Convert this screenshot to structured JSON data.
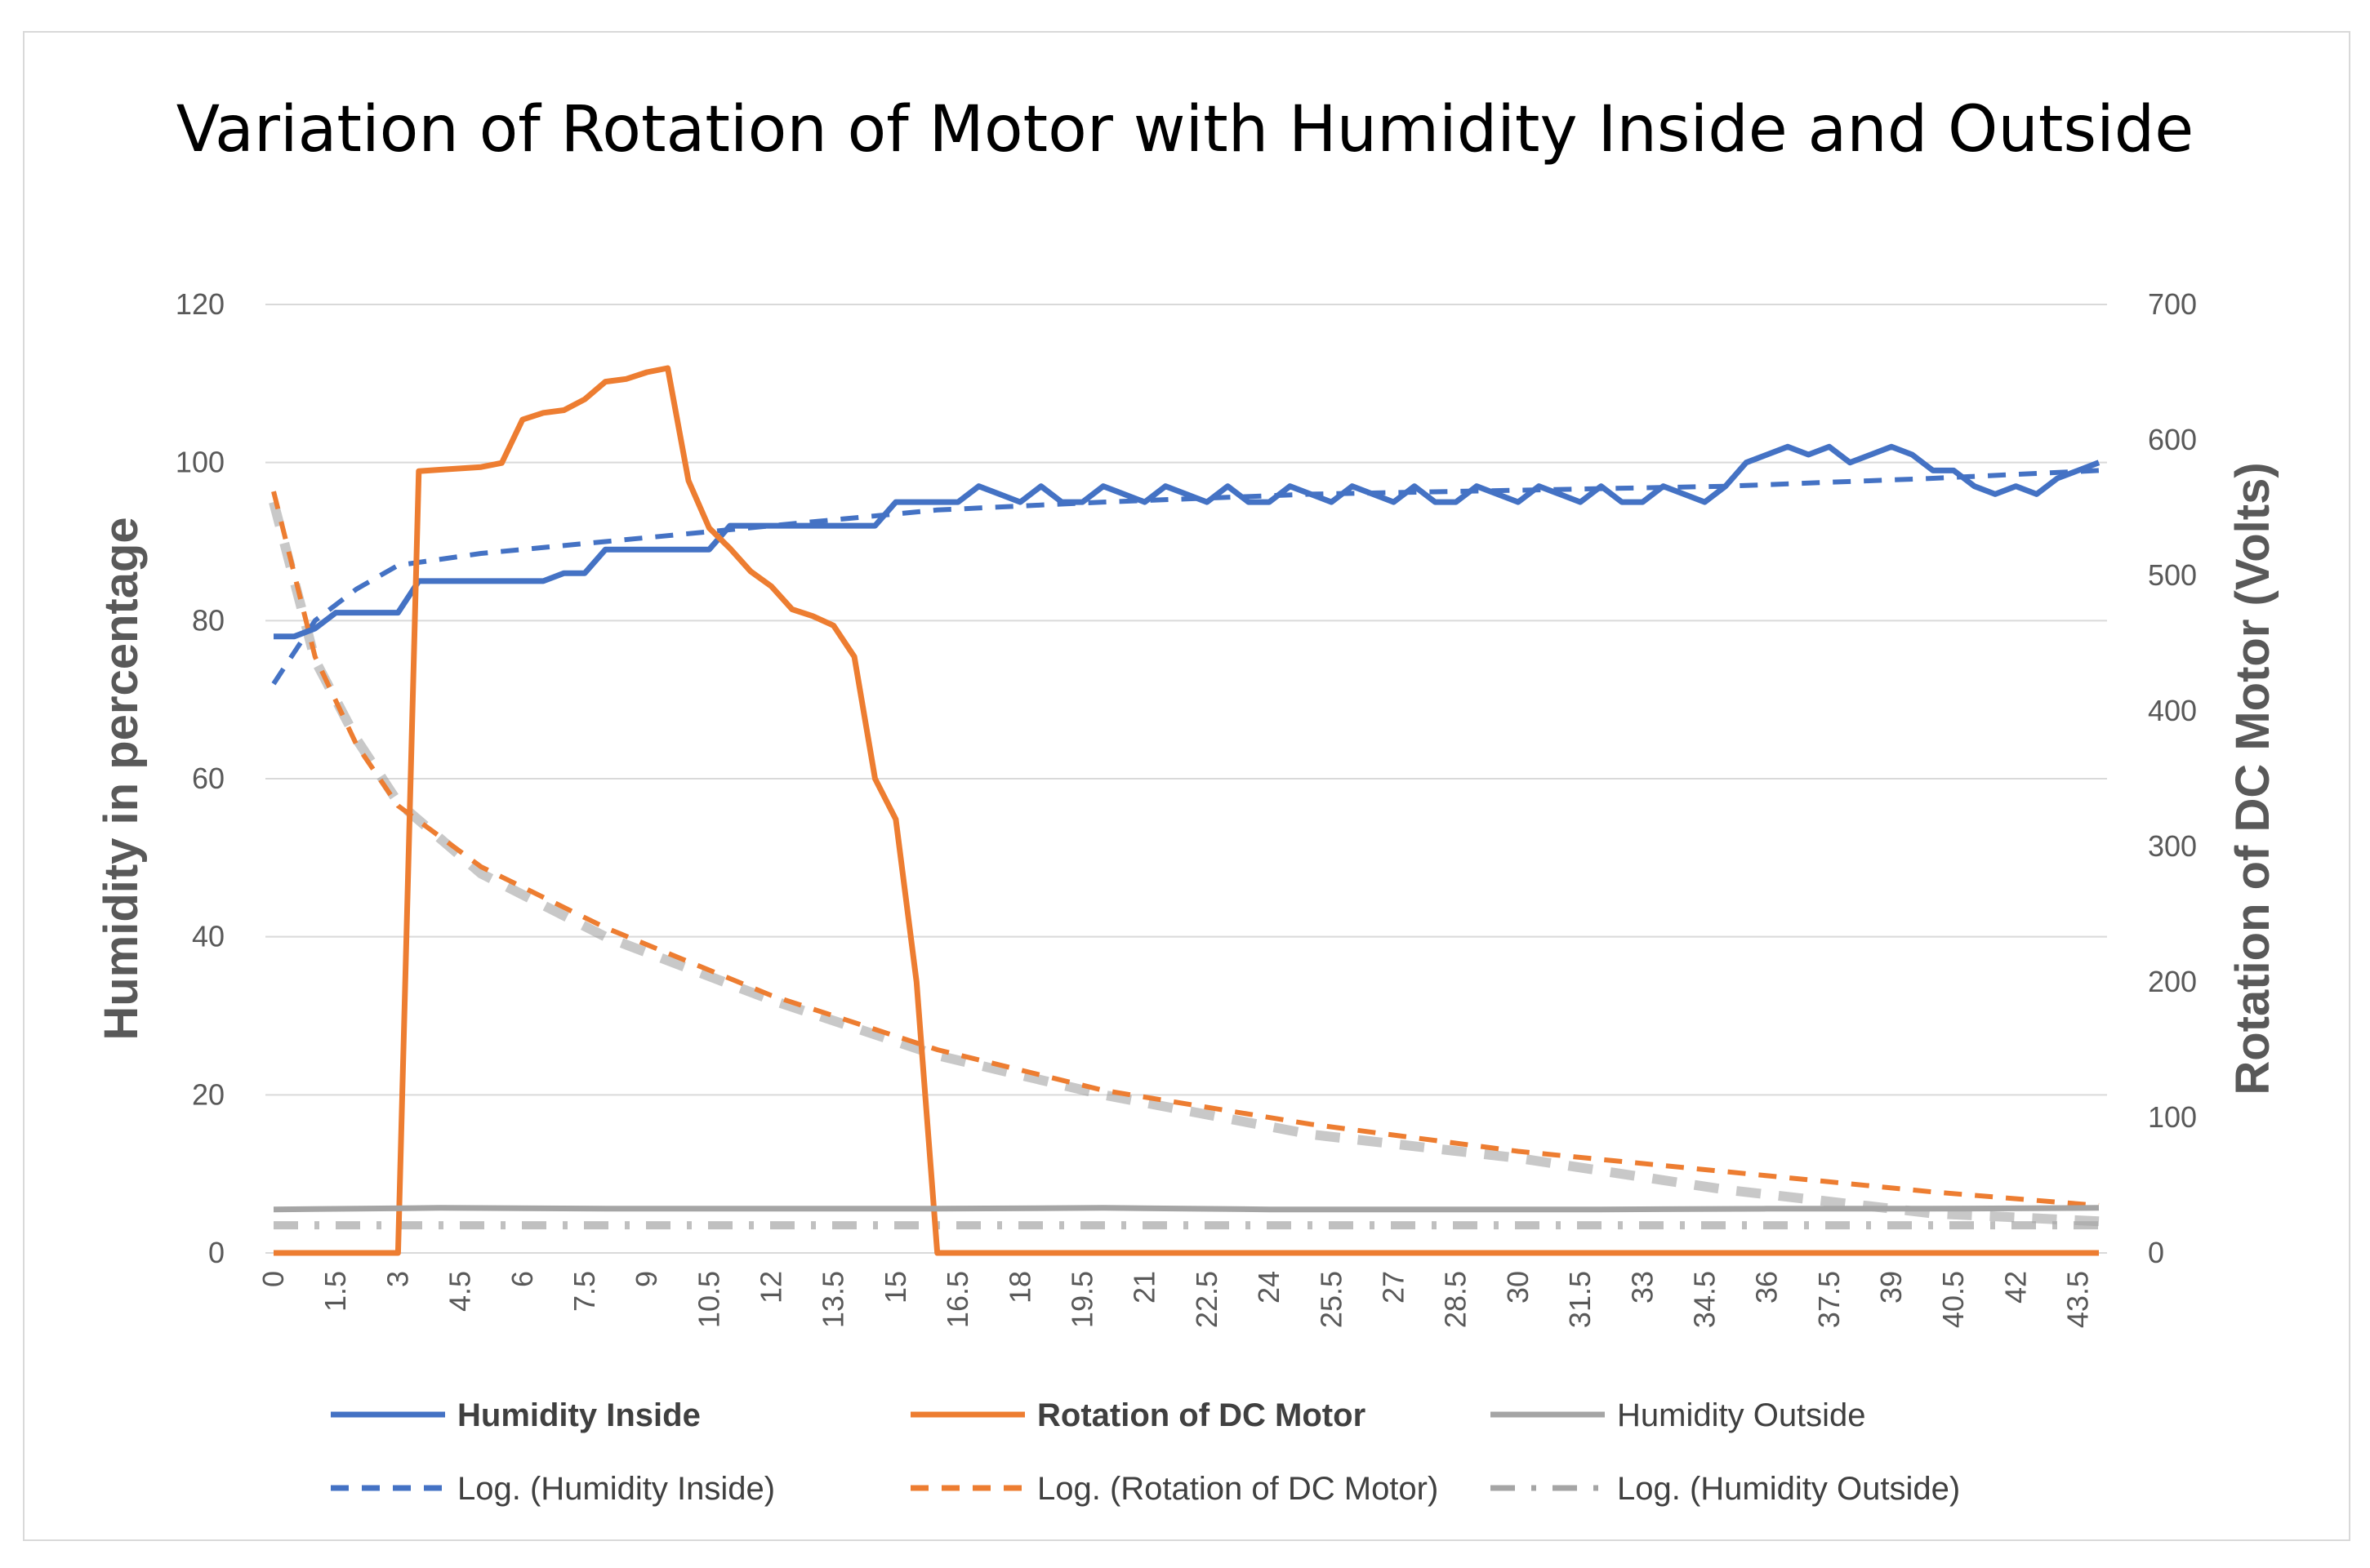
{
  "chart_data": {
    "type": "line",
    "title": "Variation of Rotation of Motor with Humidity Inside and Outside",
    "ylabel_left": "Humidity in percentage",
    "ylabel_right": "Rotation of DC Motor (Volts)",
    "y_left": {
      "min": 0,
      "max": 120,
      "ticks": [
        "0",
        "20",
        "40",
        "60",
        "80",
        "100",
        "120"
      ]
    },
    "y_right": {
      "min": 0,
      "max": 700,
      "ticks": [
        "0",
        "100",
        "200",
        "300",
        "400",
        "500",
        "600",
        "700"
      ]
    },
    "x_range": [
      0,
      44
    ],
    "x_tick_labels": [
      "0",
      "1.5",
      "3",
      "4.5",
      "6",
      "7.5",
      "9",
      "10.5",
      "12",
      "13.5",
      "15",
      "16.5",
      "18",
      "19.5",
      "21",
      "22.5",
      "24",
      "25.5",
      "27",
      "28.5",
      "30",
      "31.5",
      "33",
      "34.5",
      "36",
      "37.5",
      "39",
      "40.5",
      "42",
      "43.5"
    ],
    "series": [
      {
        "name": "Humidity Inside",
        "axis": "left",
        "color": "#4472C4",
        "style": "solid",
        "x": [
          0,
          0.5,
          1,
          1.5,
          2,
          2.5,
          3,
          3.5,
          4,
          4.5,
          5,
          5.5,
          6,
          6.5,
          7,
          7.5,
          8,
          8.5,
          9,
          9.5,
          10,
          10.5,
          11,
          11.5,
          12,
          12.5,
          13,
          13.5,
          14,
          14.5,
          15,
          15.5,
          16,
          16.5,
          17,
          17.5,
          18,
          18.5,
          19,
          19.5,
          20,
          20.5,
          21,
          21.5,
          22,
          22.5,
          23,
          23.5,
          24,
          24.5,
          25,
          25.5,
          26,
          26.5,
          27,
          27.5,
          28,
          28.5,
          29,
          29.5,
          30,
          30.5,
          31,
          31.5,
          32,
          32.5,
          33,
          33.5,
          34,
          34.5,
          35,
          35.5,
          36,
          36.5,
          37,
          37.5,
          38,
          38.5,
          39,
          39.5,
          40,
          40.5,
          41,
          41.5,
          42,
          42.5,
          43,
          43.5,
          44
        ],
        "values": [
          78,
          78,
          79,
          81,
          81,
          81,
          81,
          85,
          85,
          85,
          85,
          85,
          85,
          85,
          86,
          86,
          89,
          89,
          89,
          89,
          89,
          89,
          92,
          92,
          92,
          92,
          92,
          92,
          92,
          92,
          95,
          95,
          95,
          95,
          97,
          96,
          95,
          97,
          95,
          95,
          97,
          96,
          95,
          97,
          96,
          95,
          97,
          95,
          95,
          97,
          96,
          95,
          97,
          96,
          95,
          97,
          95,
          95,
          97,
          96,
          95,
          97,
          96,
          95,
          97,
          95,
          95,
          97,
          96,
          95,
          97,
          100,
          101,
          102,
          101,
          102,
          100,
          101,
          102,
          101,
          99,
          99,
          97,
          96,
          97,
          96,
          98,
          99,
          100
        ]
      },
      {
        "name": "Rotation of DC Motor",
        "axis": "right",
        "color": "#ED7D31",
        "style": "solid",
        "x": [
          0,
          0.5,
          1,
          1.5,
          2,
          2.5,
          3,
          3.5,
          4,
          4.5,
          5,
          5.5,
          6,
          6.5,
          7,
          7.5,
          8,
          8.5,
          9,
          9.5,
          10,
          10.5,
          11,
          11.5,
          12,
          12.5,
          13,
          13.5,
          14,
          14.5,
          15,
          15.5,
          16,
          16.5,
          17,
          18,
          19,
          20,
          21,
          22,
          23,
          24,
          25,
          26,
          27,
          28,
          29,
          30,
          31,
          32,
          33,
          34,
          35,
          36,
          37,
          38,
          39,
          40,
          41,
          42,
          43,
          44
        ],
        "values": [
          0,
          0,
          0,
          0,
          0,
          0,
          0,
          577,
          578,
          579,
          580,
          583,
          615,
          620,
          622,
          630,
          643,
          645,
          650,
          653,
          570,
          535,
          520,
          503,
          492,
          475,
          470,
          463,
          440,
          350,
          320,
          200,
          0,
          0,
          0,
          0,
          0,
          0,
          0,
          0,
          0,
          0,
          0,
          0,
          0,
          0,
          0,
          0,
          0,
          0,
          0,
          0,
          0,
          0,
          0,
          0,
          0,
          0,
          0,
          0,
          0,
          0
        ]
      },
      {
        "name": "Humidity Outside",
        "axis": "left",
        "color": "#A5A5A5",
        "style": "solid",
        "x": [
          0,
          4,
          8,
          12,
          16,
          20,
          24,
          28,
          32,
          36,
          40,
          44
        ],
        "values": [
          5.5,
          5.7,
          5.6,
          5.6,
          5.6,
          5.7,
          5.5,
          5.5,
          5.5,
          5.6,
          5.6,
          5.7
        ]
      },
      {
        "name": "Log. (Humidity Inside)",
        "axis": "left",
        "color": "#4472C4",
        "style": "dashed",
        "fit": "log",
        "from_series": "Humidity Inside"
      },
      {
        "name": "Log. (Rotation of DC Motor)",
        "axis": "right",
        "color": "#ED7D31",
        "style": "dashed",
        "fit": "log",
        "from_series": "Rotation of DC Motor"
      },
      {
        "name": "Log. (Humidity Outside)",
        "axis": "left",
        "color": "#A5A5A5",
        "style": "dash-dot",
        "fit": "log",
        "from_series": "Humidity Outside"
      }
    ],
    "trendlines": {
      "Log. (Humidity Inside)": {
        "x": [
          0,
          1,
          2,
          3,
          5,
          8,
          12,
          16,
          20,
          25,
          30,
          35,
          40,
          44
        ],
        "values": [
          72,
          80,
          84,
          87,
          88.5,
          90,
          92,
          94,
          95,
          96,
          96.5,
          97,
          98,
          99
        ]
      },
      "Log. (Rotation of DC Motor)": {
        "x": [
          0,
          1,
          2,
          3,
          5,
          8,
          12,
          16,
          20,
          25,
          30,
          35,
          40,
          44
        ],
        "values": [
          562,
          440,
          375,
          330,
          285,
          240,
          190,
          150,
          120,
          95,
          75,
          60,
          45,
          35
        ]
      },
      "Log. (Humidity Outside)": {
        "x": [
          0,
          44
        ],
        "values": [
          3.5,
          3.5
        ]
      },
      "Log. (Humidity Outside) shadow": {
        "x": [
          0,
          1,
          2,
          3,
          5,
          8,
          12,
          16,
          20,
          25,
          30,
          35,
          40,
          44
        ],
        "values": [
          95,
          75,
          65,
          57,
          48,
          40,
          32,
          25,
          20,
          15,
          12,
          8,
          5,
          4
        ]
      }
    },
    "legend": "bottom"
  }
}
